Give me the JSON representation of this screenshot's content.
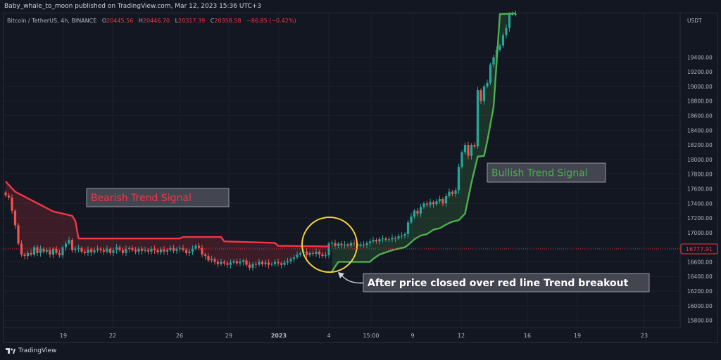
{
  "header": {
    "published": "Baby_whale_to_moon published on TradingView.com, Mar 12, 2023 15:36 UTC+3"
  },
  "legend": {
    "symbol": "Bitcoin / TetherUS, 4h, BINANCE",
    "o_label": "O",
    "o": "20445.56",
    "h_label": "H",
    "h": "20446.70",
    "l_label": "L",
    "l": "20317.39",
    "c_label": "C",
    "c": "20358.58",
    "change": "−86.85 (−0.42%)"
  },
  "footer": {
    "logo_text": "TradingView"
  },
  "colors": {
    "bull": "#26a69a",
    "bear": "#ef5350",
    "red_line": "#f23645",
    "green_line": "#4caf50",
    "background": "#131722",
    "circle": "#f5d63b"
  },
  "chart_data": {
    "type": "candlestick",
    "title": "",
    "currency": "USDT",
    "ylim": [
      15700,
      20000
    ],
    "y_ticks": [
      "19400.00",
      "19200.00",
      "19000.00",
      "18800.00",
      "18600.00",
      "18400.00",
      "18200.00",
      "18000.00",
      "17800.00",
      "17600.00",
      "17400.00",
      "17200.00",
      "17000.00",
      "16800.00",
      "16600.00",
      "16400.00",
      "16200.00",
      "16000.00",
      "15800.00"
    ],
    "x_ticks": [
      "19",
      "22",
      "26",
      "29",
      "2023",
      "4",
      "15:00",
      "9",
      "12",
      "16",
      "19",
      "23"
    ],
    "price_label": "16777.91",
    "price_label_value": 16777.91,
    "supertrend_bearish": [
      {
        "x": 0,
        "y": 17700
      },
      {
        "x": 3,
        "y": 17560
      },
      {
        "x": 7,
        "y": 17470
      },
      {
        "x": 15,
        "y": 17290
      },
      {
        "x": 21,
        "y": 17230
      },
      {
        "x": 22,
        "y": 17160
      },
      {
        "x": 23,
        "y": 16920
      },
      {
        "x": 55,
        "y": 16920
      },
      {
        "x": 56,
        "y": 16940
      },
      {
        "x": 68,
        "y": 16940
      },
      {
        "x": 69,
        "y": 16880
      },
      {
        "x": 85,
        "y": 16860
      },
      {
        "x": 86,
        "y": 16820
      },
      {
        "x": 102,
        "y": 16810
      }
    ],
    "supertrend_bullish": [
      {
        "x": 103,
        "y": 16470
      },
      {
        "x": 105,
        "y": 16600
      },
      {
        "x": 115,
        "y": 16600
      },
      {
        "x": 116,
        "y": 16640
      },
      {
        "x": 118,
        "y": 16700
      },
      {
        "x": 120,
        "y": 16730
      },
      {
        "x": 122,
        "y": 16760
      },
      {
        "x": 124,
        "y": 16780
      },
      {
        "x": 126,
        "y": 16800
      },
      {
        "x": 127,
        "y": 16830
      },
      {
        "x": 129,
        "y": 16910
      },
      {
        "x": 131,
        "y": 16960
      },
      {
        "x": 133,
        "y": 16980
      },
      {
        "x": 135,
        "y": 17040
      },
      {
        "x": 137,
        "y": 17060
      },
      {
        "x": 139,
        "y": 17110
      },
      {
        "x": 141,
        "y": 17150
      },
      {
        "x": 143,
        "y": 17170
      },
      {
        "x": 145,
        "y": 17260
      },
      {
        "x": 147,
        "y": 17680
      },
      {
        "x": 149,
        "y": 18040
      },
      {
        "x": 151,
        "y": 18050
      },
      {
        "x": 152,
        "y": 18250
      },
      {
        "x": 154,
        "y": 18720
      },
      {
        "x": 156,
        "y": 19990
      },
      {
        "x": 161,
        "y": 20000
      }
    ],
    "candles_close": [
      17510,
      17480,
      17300,
      17100,
      16850,
      16700,
      16680,
      16720,
      16700,
      16800,
      16720,
      16780,
      16740,
      16760,
      16700,
      16780,
      16720,
      16690,
      16800,
      16850,
      16900,
      16760,
      16780,
      16790,
      16740,
      16720,
      16770,
      16730,
      16760,
      16780,
      16760,
      16740,
      16780,
      16720,
      16760,
      16800,
      16760,
      16720,
      16780,
      16790,
      16760,
      16740,
      16780,
      16750,
      16760,
      16740,
      16780,
      16760,
      16730,
      16770,
      16740,
      16760,
      16790,
      16750,
      16780,
      16790,
      16760,
      16720,
      16740,
      16780,
      16820,
      16790,
      16700,
      16680,
      16620,
      16640,
      16600,
      16570,
      16600,
      16580,
      16560,
      16590,
      16610,
      16580,
      16600,
      16620,
      16560,
      16520,
      16570,
      16560,
      16600,
      16570,
      16590,
      16560,
      16570,
      16600,
      16580,
      16560,
      16590,
      16610,
      16640,
      16660,
      16700,
      16720,
      16740,
      16690,
      16720,
      16710,
      16740,
      16700,
      16680,
      16690,
      16850,
      16860,
      16820,
      16850,
      16830,
      16840,
      16820,
      16860,
      16850,
      16820,
      16840,
      16830,
      16860,
      16880,
      16900,
      16880,
      16910,
      16920,
      16900,
      16910,
      16930,
      16920,
      16950,
      16960,
      16980,
      17140,
      17220,
      17300,
      17260,
      17350,
      17400,
      17380,
      17420,
      17390,
      17430,
      17460,
      17400,
      17500,
      17560,
      17530,
      17580,
      17900,
      18100,
      18200,
      18050,
      18200,
      18180,
      18950,
      18800,
      19000,
      19050,
      19300,
      19400,
      19500,
      19560,
      19700,
      19800,
      19990,
      19990,
      19990
    ],
    "annotations": [
      {
        "text": "Bearish Trend Signal",
        "color": "#f23645",
        "x": 27,
        "y": 17365
      },
      {
        "text": "Bullish Trend Signal",
        "color": "#4caf50",
        "x": 161,
        "y": 17612
      },
      {
        "text": "After price closed over red line Trend breakout",
        "color": "#ffffff",
        "x": 118,
        "y": 16225
      }
    ]
  }
}
